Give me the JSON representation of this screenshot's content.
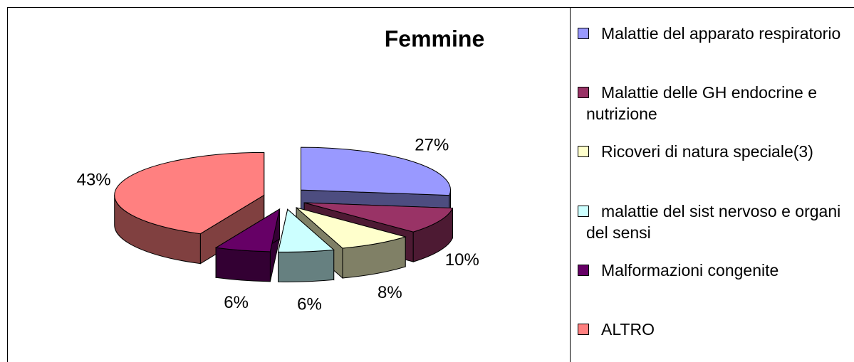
{
  "chart_data": {
    "type": "pie",
    "title": "Femmine",
    "categories": [
      "Malattie del apparato respiratorio",
      "Malattie delle GH endocrine e nutrizione",
      "Ricoveri di natura speciale(3)",
      "malattie del sist nervoso e organi del sensi",
      "Malformazioni congenite",
      "ALTRO"
    ],
    "values": [
      27,
      10,
      8,
      6,
      6,
      43
    ],
    "value_labels": [
      "27%",
      "10%",
      "8%",
      "6%",
      "6%",
      "43%"
    ],
    "colors": [
      "#9999ff",
      "#993366",
      "#ffffcc",
      "#ccffff",
      "#660066",
      "#ff8080"
    ],
    "legend": "right"
  }
}
